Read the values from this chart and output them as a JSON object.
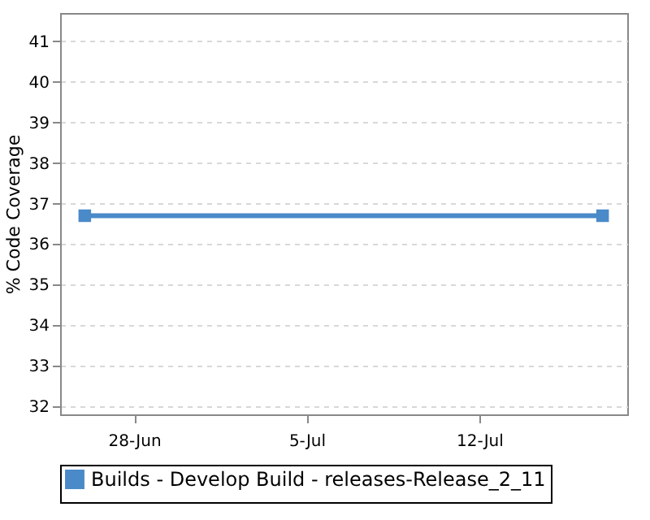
{
  "chart_data": {
    "type": "line",
    "ylabel": "% Code Coverage",
    "x": [
      "--06-26",
      "--07-17"
    ],
    "series": [
      {
        "name": "Builds - Develop Build - releases-Release_2_11",
        "color": "#4a8ac9",
        "values": [
          36.7,
          36.7
        ]
      }
    ],
    "xlim": [
      "--06-25",
      "--07-18"
    ],
    "xticks": [
      {
        "value": "--06-28",
        "label": "28-Jun"
      },
      {
        "value": "--07-05",
        "label": "5-Jul"
      },
      {
        "value": "--07-12",
        "label": "12-Jul"
      }
    ],
    "ylim": [
      31.8,
      41.7
    ],
    "yticks": [
      32,
      33,
      34,
      35,
      36,
      37,
      38,
      39,
      40,
      41
    ],
    "grid": "y",
    "legend": "bottom",
    "marker": "square",
    "line_style": "solid"
  }
}
